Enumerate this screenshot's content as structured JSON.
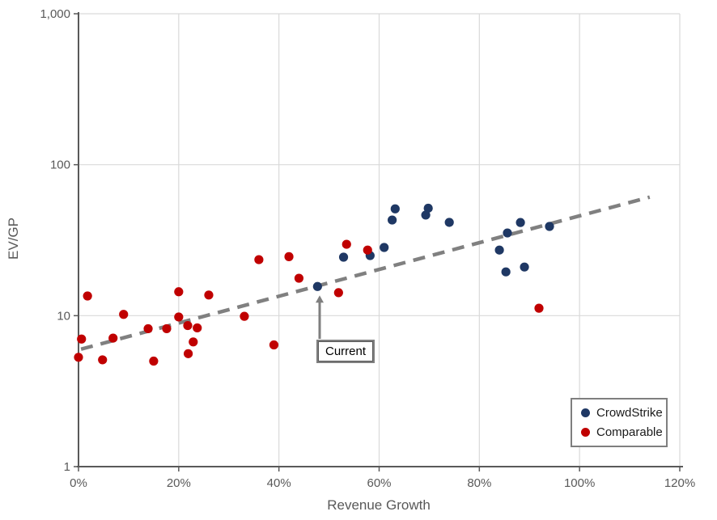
{
  "chart_data": {
    "type": "scatter",
    "title": "",
    "xlabel": "Revenue Growth",
    "ylabel": "EV/GP",
    "x_axis": {
      "scale": "linear",
      "min": 0,
      "max": 120,
      "tick_values": [
        0,
        20,
        40,
        60,
        80,
        100,
        120
      ],
      "tick_labels": [
        "0%",
        "20%",
        "40%",
        "60%",
        "80%",
        "100%",
        "120%"
      ]
    },
    "y_axis": {
      "scale": "log",
      "min": 1,
      "max": 1000,
      "tick_values": [
        1,
        10,
        100,
        1000
      ],
      "tick_labels": [
        "1",
        "10",
        "100",
        "1,000"
      ]
    },
    "grid": true,
    "legend_position": "bottom-right",
    "colors": {
      "crowdstrike": "#1F3864",
      "comparable": "#C00000",
      "trend": "#808080",
      "grid": "#D9D9D9",
      "axis": "#595959",
      "tick_text": "#595959"
    },
    "series": [
      {
        "name": "CrowdStrike",
        "color": "#1F3864",
        "points": [
          [
            47.7,
            15.6
          ],
          [
            52.9,
            24.4
          ],
          [
            58.2,
            25.0
          ],
          [
            61.0,
            28.3
          ],
          [
            62.6,
            43.0
          ],
          [
            63.2,
            51.0
          ],
          [
            69.3,
            46.4
          ],
          [
            69.8,
            51.5
          ],
          [
            74.0,
            41.5
          ],
          [
            84.0,
            27.2
          ],
          [
            85.3,
            19.5
          ],
          [
            85.6,
            35.3
          ],
          [
            88.2,
            41.4
          ],
          [
            89.0,
            21.0
          ],
          [
            94.0,
            39.0
          ]
        ]
      },
      {
        "name": "Comparable",
        "color": "#C00000",
        "points": [
          [
            0.0,
            5.3
          ],
          [
            0.6,
            7.0
          ],
          [
            1.8,
            13.5
          ],
          [
            4.8,
            5.1
          ],
          [
            6.9,
            7.1
          ],
          [
            9.0,
            10.2
          ],
          [
            13.9,
            8.2
          ],
          [
            15.0,
            5.0
          ],
          [
            17.6,
            8.2
          ],
          [
            20.0,
            14.4
          ],
          [
            20.0,
            9.8
          ],
          [
            21.8,
            8.6
          ],
          [
            21.9,
            5.6
          ],
          [
            22.9,
            6.7
          ],
          [
            23.7,
            8.3
          ],
          [
            26.0,
            13.7
          ],
          [
            33.1,
            9.9
          ],
          [
            36.0,
            23.5
          ],
          [
            39.0,
            6.4
          ],
          [
            42.0,
            24.6
          ],
          [
            44.0,
            17.7
          ],
          [
            51.9,
            14.2
          ],
          [
            53.5,
            29.7
          ],
          [
            57.7,
            27.2
          ],
          [
            91.9,
            11.2
          ]
        ]
      }
    ],
    "trendline": {
      "style": "dashed",
      "color": "#808080",
      "x1": 0.5,
      "y1": 6.0,
      "x2": 114,
      "y2": 61
    }
  },
  "annotation": {
    "label": "Current",
    "points_to": {
      "x": 47.7,
      "y": 15.6
    }
  }
}
